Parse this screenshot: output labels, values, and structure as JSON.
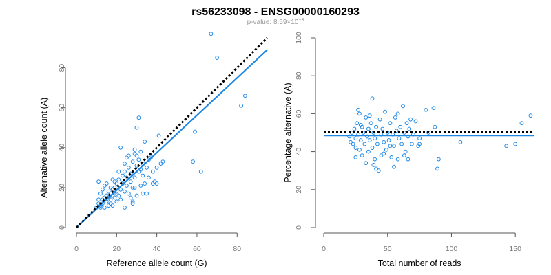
{
  "title": "rs56233098 - ENSG00000160293",
  "subtitle_prefix": "p-value: 8.59×10",
  "subtitle_exp": "−3",
  "colors": {
    "points": "#1E88E5",
    "fit": "#1E88E5",
    "reference": "#000000",
    "axis": "#555555",
    "tick_text": "#777777",
    "subtitle": "#999999"
  },
  "chart_data": [
    {
      "type": "scatter",
      "xlabel": "Reference allele count (G)",
      "ylabel": "Alternative allele count (A)",
      "xlim": [
        0,
        95
      ],
      "ylim": [
        0,
        95
      ],
      "x_ticks": [
        0,
        20,
        40,
        60,
        80
      ],
      "y_ticks": [
        0,
        20,
        40,
        60,
        80
      ],
      "grid": false,
      "fit_line": [
        [
          0,
          0
        ],
        [
          95,
          89
        ]
      ],
      "reference_line": [
        [
          0,
          0
        ],
        [
          95,
          95
        ]
      ],
      "points": [
        [
          10,
          10
        ],
        [
          11,
          12
        ],
        [
          12,
          10
        ],
        [
          12,
          11
        ],
        [
          13,
          14
        ],
        [
          13,
          12
        ],
        [
          14,
          10
        ],
        [
          14,
          15
        ],
        [
          15,
          13
        ],
        [
          15,
          16
        ],
        [
          16,
          15
        ],
        [
          16,
          18
        ],
        [
          17,
          12
        ],
        [
          17,
          14
        ],
        [
          18,
          16
        ],
        [
          18,
          11
        ],
        [
          18,
          19
        ],
        [
          19,
          15
        ],
        [
          19,
          20
        ],
        [
          20,
          13
        ],
        [
          20,
          18
        ],
        [
          20,
          22
        ],
        [
          21,
          16
        ],
        [
          21,
          24
        ],
        [
          22,
          19
        ],
        [
          22,
          14
        ],
        [
          23,
          22
        ],
        [
          23,
          26
        ],
        [
          24,
          18
        ],
        [
          24,
          28
        ],
        [
          25,
          21
        ],
        [
          25,
          25
        ],
        [
          26,
          17
        ],
        [
          26,
          30
        ],
        [
          27,
          23
        ],
        [
          27,
          27
        ],
        [
          28,
          13
        ],
        [
          28,
          33
        ],
        [
          29,
          20
        ],
        [
          29,
          25
        ],
        [
          30,
          31
        ],
        [
          30,
          36
        ],
        [
          31,
          28
        ],
        [
          31,
          34
        ],
        [
          32,
          21
        ],
        [
          32,
          38
        ],
        [
          33,
          26
        ],
        [
          33,
          32
        ],
        [
          34,
          22
        ],
        [
          35,
          30
        ],
        [
          36,
          25
        ],
        [
          37,
          35
        ],
        [
          38,
          22
        ],
        [
          40,
          30
        ],
        [
          42,
          32
        ],
        [
          11,
          23
        ],
        [
          12,
          17
        ],
        [
          14,
          21
        ],
        [
          16,
          11
        ],
        [
          17,
          20
        ],
        [
          19,
          23
        ],
        [
          21,
          28
        ],
        [
          22,
          40
        ],
        [
          24,
          32
        ],
        [
          26,
          36
        ],
        [
          27,
          15
        ],
        [
          29,
          39
        ],
        [
          30,
          50
        ],
        [
          31,
          55
        ],
        [
          32,
          29
        ],
        [
          33,
          17
        ],
        [
          34,
          43
        ],
        [
          36,
          34
        ],
        [
          38,
          28
        ],
        [
          39,
          23
        ],
        [
          41,
          46
        ],
        [
          43,
          33
        ],
        [
          24,
          10
        ],
        [
          15,
          22
        ],
        [
          25,
          35
        ],
        [
          28,
          12
        ],
        [
          29,
          37
        ],
        [
          30,
          16
        ],
        [
          28,
          20
        ],
        [
          35,
          17
        ],
        [
          40,
          22
        ],
        [
          18,
          24
        ],
        [
          13,
          19
        ],
        [
          11,
          14
        ],
        [
          20,
          17
        ],
        [
          58,
          33
        ],
        [
          59,
          48
        ],
        [
          62,
          28
        ],
        [
          67,
          97
        ],
        [
          70,
          85
        ],
        [
          82,
          61
        ],
        [
          84,
          66
        ]
      ]
    },
    {
      "type": "scatter",
      "xlabel": "Total number of reads",
      "ylabel": "Percentage alternative (A)",
      "xlim": [
        0,
        165
      ],
      "ylim": [
        0,
        100
      ],
      "x_ticks": [
        0,
        50,
        100,
        150
      ],
      "y_ticks": [
        0,
        20,
        40,
        60,
        80,
        100
      ],
      "grid": false,
      "fit_line": [
        [
          0,
          48.5
        ],
        [
          165,
          48.5
        ]
      ],
      "reference_line": [
        [
          0,
          50.5
        ],
        [
          165,
          50.5
        ]
      ],
      "points": [
        [
          20,
          48
        ],
        [
          21,
          45
        ],
        [
          22,
          50
        ],
        [
          23,
          44
        ],
        [
          24,
          52
        ],
        [
          25,
          42
        ],
        [
          25,
          47
        ],
        [
          26,
          55
        ],
        [
          27,
          49
        ],
        [
          28,
          41
        ],
        [
          28,
          60
        ],
        [
          29,
          46
        ],
        [
          30,
          53
        ],
        [
          30,
          38
        ],
        [
          31,
          50
        ],
        [
          32,
          44
        ],
        [
          33,
          58
        ],
        [
          34,
          48
        ],
        [
          35,
          40
        ],
        [
          35,
          52
        ],
        [
          36,
          46
        ],
        [
          37,
          55
        ],
        [
          38,
          42
        ],
        [
          38,
          68
        ],
        [
          39,
          50
        ],
        [
          40,
          36
        ],
        [
          40,
          47
        ],
        [
          41,
          53
        ],
        [
          42,
          44
        ],
        [
          43,
          30
        ],
        [
          44,
          57
        ],
        [
          45,
          49
        ],
        [
          45,
          38
        ],
        [
          46,
          52
        ],
        [
          47,
          45
        ],
        [
          48,
          61
        ],
        [
          49,
          41
        ],
        [
          50,
          50
        ],
        [
          51,
          46
        ],
        [
          52,
          55
        ],
        [
          53,
          37
        ],
        [
          54,
          49
        ],
        [
          55,
          43
        ],
        [
          56,
          58
        ],
        [
          57,
          51
        ],
        [
          58,
          36
        ],
        [
          59,
          47
        ],
        [
          60,
          53
        ],
        [
          61,
          44
        ],
        [
          62,
          64
        ],
        [
          63,
          50
        ],
        [
          64,
          40
        ],
        [
          65,
          55
        ],
        [
          66,
          48
        ],
        [
          67,
          52
        ],
        [
          68,
          57
        ],
        [
          69,
          44
        ],
        [
          70,
          49
        ],
        [
          72,
          56
        ],
        [
          74,
          43
        ],
        [
          75,
          47
        ],
        [
          80,
          62
        ],
        [
          82,
          50
        ],
        [
          86,
          63
        ],
        [
          87,
          53
        ],
        [
          89,
          31
        ],
        [
          90,
          36
        ],
        [
          107,
          45
        ],
        [
          143,
          43
        ],
        [
          150,
          44
        ],
        [
          155,
          55
        ],
        [
          162,
          59
        ],
        [
          27,
          62
        ],
        [
          33,
          34
        ],
        [
          41,
          31
        ],
        [
          47,
          39
        ],
        [
          52,
          43
        ],
        [
          58,
          60
        ],
        [
          63,
          38
        ],
        [
          66,
          36
        ],
        [
          29,
          54
        ],
        [
          36,
          59
        ],
        [
          55,
          32
        ],
        [
          75,
          44
        ],
        [
          25,
          37
        ],
        [
          39,
          33
        ]
      ]
    }
  ]
}
